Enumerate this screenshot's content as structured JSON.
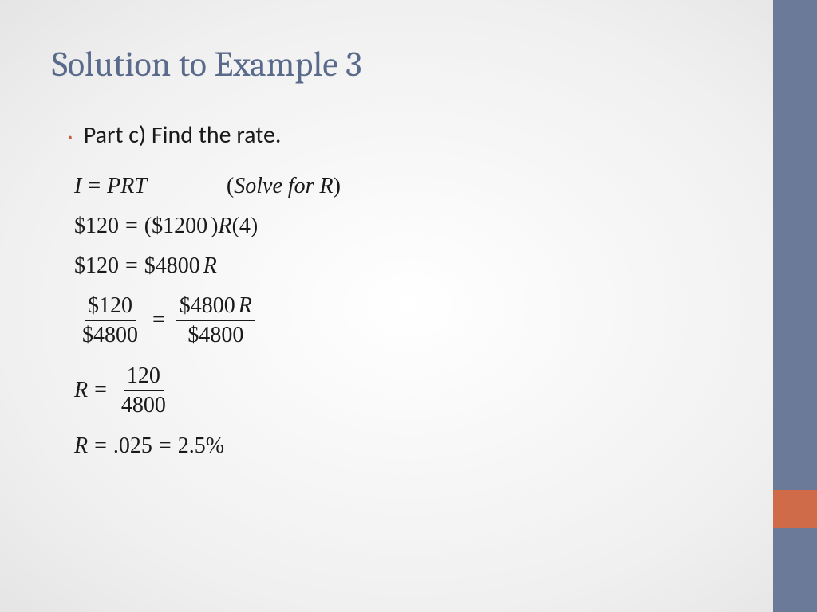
{
  "colors": {
    "title": "#5a6a8a",
    "bullet": "#c85a3a",
    "sidebar": "#6b7a99",
    "accent": "#d06b4a",
    "text": "#1a1a1a",
    "bg_center": "#ffffff",
    "bg_edge": "#e5e5e5"
  },
  "title": "Solution to Example 3",
  "bullet_text": "Part c) Find the rate.",
  "math": {
    "line1": {
      "lhs_var": "I",
      "eq": "=",
      "rhs_vars": "PRT",
      "note_open": "(",
      "note_text": "Solve  for R",
      "note_close": ")"
    },
    "line2": {
      "lhs": "$120",
      "eq": "=",
      "p1_open": "(",
      "p1_val": "$1200",
      "p1_close": ")",
      "r_var": "R",
      "p2_open": "(",
      "p2_val": "4",
      "p2_close": ")"
    },
    "line3": {
      "lhs": "$120",
      "eq": "=",
      "rhs_val": "$4800",
      "r_var": "R"
    },
    "line4": {
      "num1": "$120",
      "den1": "$4800",
      "eq": "=",
      "num2_val": "$4800",
      "num2_var": "R",
      "den2": "$4800"
    },
    "line5": {
      "lhs_var": "R",
      "eq": "=",
      "num": "120",
      "den": "4800"
    },
    "line6": {
      "lhs_var": "R",
      "eq1": "=",
      "val1": ".025",
      "eq2": "=",
      "val2": "2.5%"
    }
  },
  "fonts": {
    "title_size": 44,
    "body_size": 30,
    "math_size": 28
  }
}
